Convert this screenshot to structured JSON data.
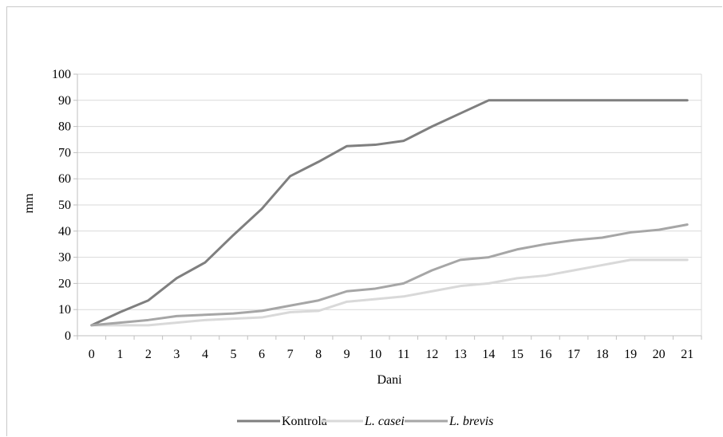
{
  "chart_data": {
    "type": "line",
    "title": "",
    "xlabel": "Dani",
    "ylabel": "mm",
    "ylim": [
      0,
      100
    ],
    "yticks": [
      0,
      10,
      20,
      30,
      40,
      50,
      60,
      70,
      80,
      90,
      100
    ],
    "x": [
      0,
      1,
      2,
      3,
      4,
      5,
      6,
      7,
      8,
      9,
      10,
      11,
      12,
      13,
      14,
      15,
      16,
      17,
      18,
      19,
      20,
      21
    ],
    "grid": "horizontal",
    "legend_position": "bottom",
    "series": [
      {
        "name": "Kontrola",
        "italic": false,
        "color": "#7f7f7f",
        "values": [
          4,
          9,
          13.5,
          22,
          28,
          38.5,
          48.5,
          61,
          66.5,
          72.5,
          73,
          74.5,
          80,
          85,
          90,
          90,
          90,
          90,
          90,
          90,
          90,
          90
        ]
      },
      {
        "name": "L. casei",
        "italic": true,
        "color": "#d9d9d9",
        "values": [
          4,
          4,
          4,
          5,
          6,
          6.5,
          7,
          9,
          9.5,
          13,
          14,
          15,
          17,
          19,
          20,
          22,
          23,
          25,
          27,
          29,
          29,
          29
        ]
      },
      {
        "name": "L. brevis",
        "italic": true,
        "color": "#a6a6a6",
        "values": [
          4,
          5,
          6,
          7.5,
          8,
          8.5,
          9.5,
          11.5,
          13.5,
          17,
          18,
          20,
          25,
          29,
          30,
          33,
          35,
          36.5,
          37.5,
          39.5,
          40.5,
          42.5
        ]
      }
    ]
  }
}
